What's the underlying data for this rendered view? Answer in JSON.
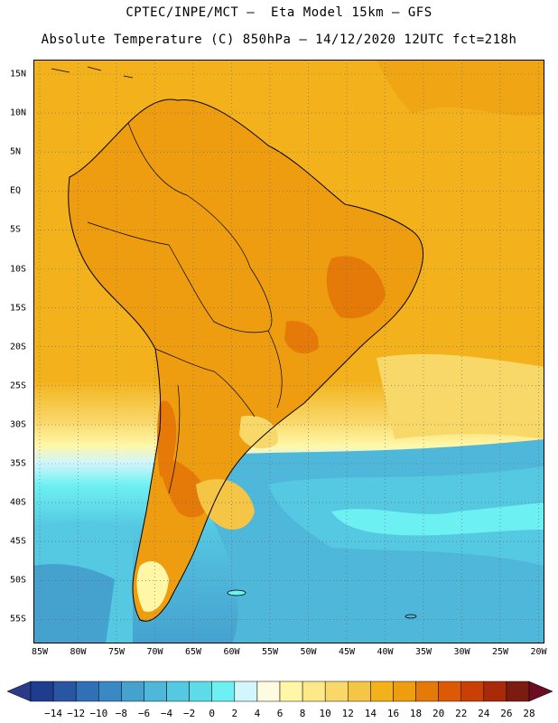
{
  "header": {
    "line1": "CPTEC/INPE/MCT –  Eta Model 15km – GFS",
    "line2": "Absolute Temperature (C) 850hPa – 14/12/2020 12UTC fct=218h"
  },
  "axes": {
    "lat_labels": [
      "15N",
      "10N",
      "5N",
      "EQ",
      "5S",
      "10S",
      "15S",
      "20S",
      "25S",
      "30S",
      "35S",
      "40S",
      "45S",
      "50S",
      "55S"
    ],
    "lon_labels": [
      "85W",
      "80W",
      "75W",
      "70W",
      "65W",
      "60W",
      "55W",
      "50W",
      "45W",
      "40W",
      "35W",
      "30W",
      "25W",
      "20W"
    ]
  },
  "colorbar": {
    "labels": [
      "-14",
      "-12",
      "-10",
      "-8",
      "-6",
      "-4",
      "-2",
      "0",
      "2",
      "4",
      "6",
      "8",
      "10",
      "12",
      "14",
      "16",
      "18",
      "20",
      "22",
      "24",
      "26",
      "28"
    ],
    "colors": [
      "#1f3d8f",
      "#2a55a3",
      "#3070b5",
      "#3a88c4",
      "#45a2cf",
      "#4fb7da",
      "#55c8e2",
      "#5ddbe9",
      "#6cf0f2",
      "#d2f6fb",
      "#fffbe0",
      "#fff7a6",
      "#fde88a",
      "#f9d86a",
      "#f5c545",
      "#f3b21c",
      "#ee9c10",
      "#e57a08",
      "#dc5a05",
      "#c93f06",
      "#a82a0a",
      "#7c1c10"
    ],
    "low_color": "#2c3a8a",
    "high_color": "#6b0d22"
  }
}
